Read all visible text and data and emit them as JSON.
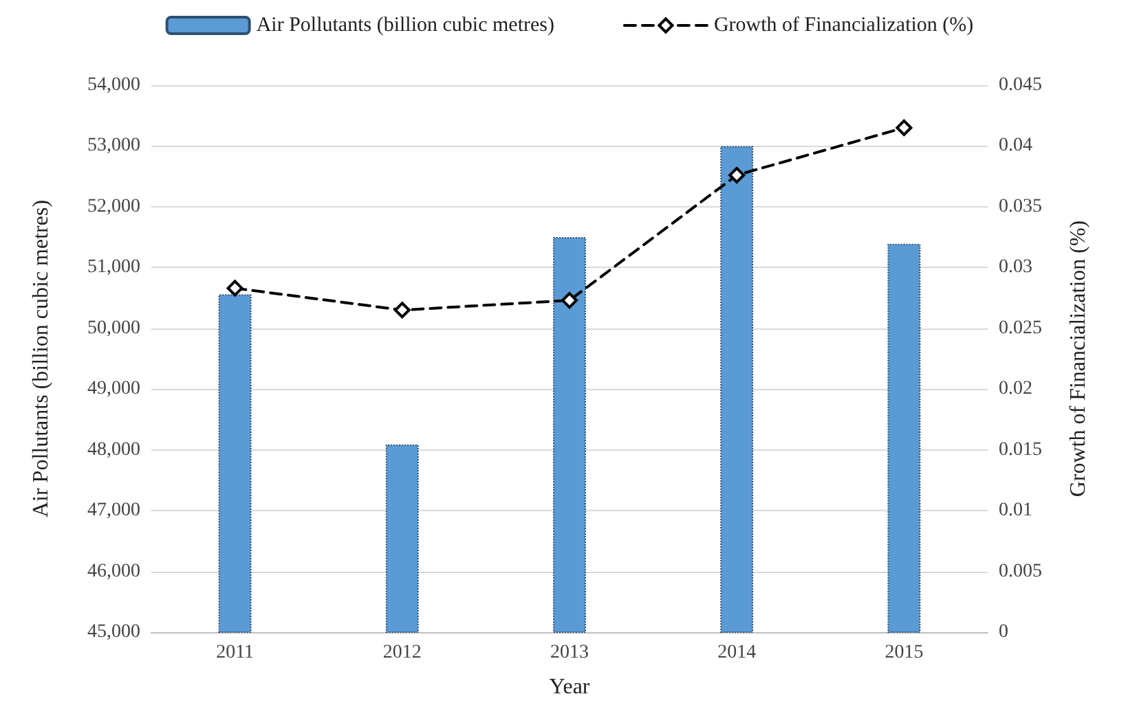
{
  "chart_data": {
    "type": "bar",
    "categories": [
      "2011",
      "2012",
      "2013",
      "2014",
      "2015"
    ],
    "xlabel": "Year",
    "ylabel": "Air Pollutants (billion cubic metres)",
    "y2label": "Growth of Financialization (%)",
    "series": [
      {
        "name": "Air Pollutants (billion cubic metres)",
        "color": "#5b9bd5",
        "values": [
          50560,
          48090,
          51500,
          53000,
          51390
        ]
      },
      {
        "name": "Growth of Financialization (%)",
        "type": "line",
        "axis": "y2",
        "color": "#000000",
        "marker": "diamond",
        "line_style": "dashed",
        "values": [
          0.0283,
          0.0265,
          0.0273,
          0.0376,
          0.0415
        ]
      }
    ],
    "ylim": [
      45000,
      54000
    ],
    "yticks": [
      {
        "value": 45000,
        "label": "45,000"
      },
      {
        "value": 46000,
        "label": "46,000"
      },
      {
        "value": 47000,
        "label": "47,000"
      },
      {
        "value": 48000,
        "label": "48,000"
      },
      {
        "value": 49000,
        "label": "49,000"
      },
      {
        "value": 50000,
        "label": "50,000"
      },
      {
        "value": 51000,
        "label": "51,000"
      },
      {
        "value": 52000,
        "label": "52,000"
      },
      {
        "value": 53000,
        "label": "53,000"
      },
      {
        "value": 54000,
        "label": "54,000"
      }
    ],
    "y2lim": [
      0,
      0.045
    ],
    "y2ticks": [
      0,
      0.005,
      0.01,
      0.015,
      0.02,
      0.025,
      0.03,
      0.035,
      0.04,
      0.045
    ],
    "grid": "y",
    "legend": "top"
  }
}
